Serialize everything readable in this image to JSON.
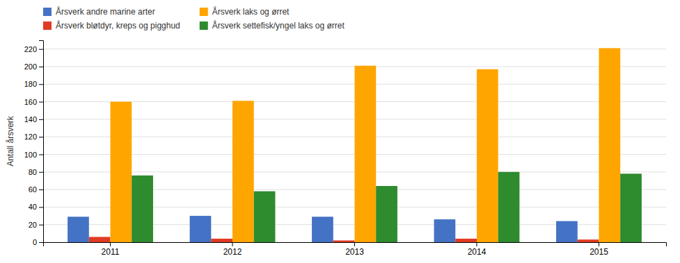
{
  "chart_data": {
    "type": "bar",
    "categories": [
      "2011",
      "2012",
      "2013",
      "2014",
      "2015"
    ],
    "series": [
      {
        "name": "Årsverk andre marine arter",
        "color": "#4472C4",
        "values": [
          29,
          30,
          29,
          26,
          24
        ]
      },
      {
        "name": "Årsverk bløtdyr, kreps og pigghud",
        "color": "#E03B24",
        "values": [
          6,
          4,
          2,
          4,
          3
        ]
      },
      {
        "name": "Årsverk laks og ørret",
        "color": "#FFA500",
        "values": [
          160,
          161,
          201,
          197,
          221
        ]
      },
      {
        "name": "Årsverk settefisk/yngel laks og ørret",
        "color": "#2E8B2E",
        "values": [
          76,
          58,
          64,
          80,
          78
        ]
      }
    ],
    "y_label": "Antall årsverk",
    "ylim": [
      0,
      230
    ],
    "yticks": [
      0,
      20,
      40,
      60,
      80,
      100,
      120,
      140,
      160,
      180,
      200,
      220
    ],
    "grid": true,
    "legend": "top"
  }
}
